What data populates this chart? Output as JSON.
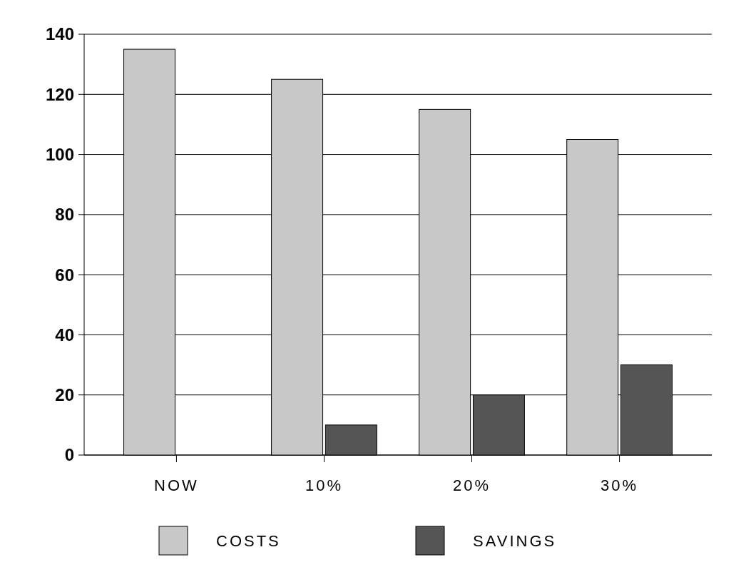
{
  "chart_data": {
    "type": "bar",
    "categories": [
      "NOW",
      "10%",
      "20%",
      "30%"
    ],
    "series": [
      {
        "name": "COSTS",
        "color": "#c8c8c8",
        "values": [
          135,
          125,
          115,
          105
        ]
      },
      {
        "name": "SAVINGS",
        "color": "#555555",
        "values": [
          0,
          10,
          20,
          30
        ]
      }
    ],
    "ylim": [
      0,
      140
    ],
    "yticks": [
      0,
      20,
      40,
      60,
      80,
      100,
      120,
      140
    ],
    "grid": "y",
    "legend": "bottom"
  }
}
